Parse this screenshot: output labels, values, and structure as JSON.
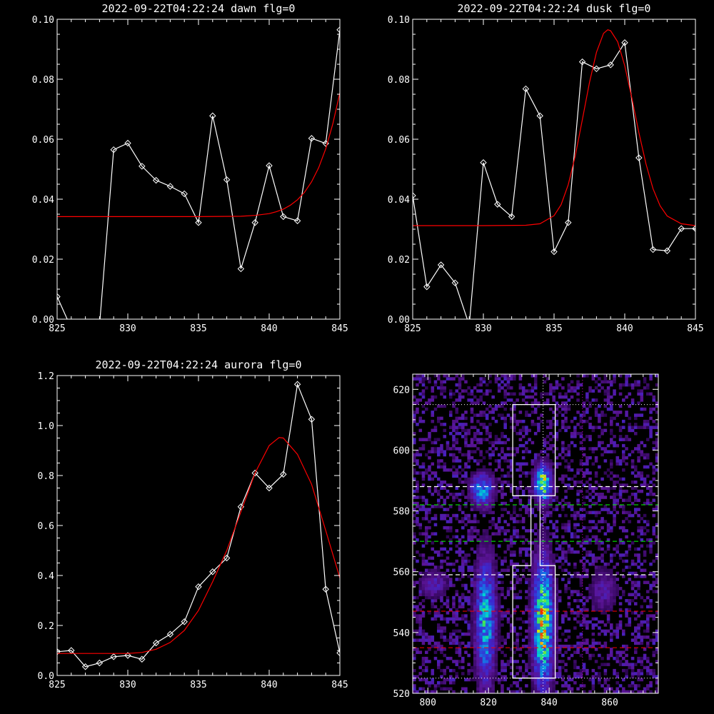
{
  "colors": {
    "background": "#000000",
    "axes": "#ffffff",
    "data_line": "#ffffff",
    "fit_line": "#ff0000",
    "guide_white": "#ffffff",
    "guide_green": "#00ff00",
    "guide_red": "#ff0000",
    "guide_magenta": "#c000c0"
  },
  "chart_data": [
    {
      "type": "line",
      "title": "2022-09-22T04:22:24 dawn flg=0",
      "xlim": [
        825,
        845
      ],
      "ylim": [
        0,
        0.1
      ],
      "xticks": [
        825,
        830,
        835,
        840,
        845
      ],
      "xtick_labels": [
        "825",
        "830",
        "835",
        "840",
        "845"
      ],
      "yticks": [
        0,
        0.02,
        0.04,
        0.06,
        0.08,
        0.1
      ],
      "ytick_labels": [
        "0.00",
        "0.02",
        "0.04",
        "0.06",
        "0.08",
        "0.10"
      ],
      "series": [
        {
          "style": "data",
          "markers": "diamond",
          "x": [
            825,
            826,
            827,
            828,
            829,
            830,
            831,
            832,
            833,
            834,
            835,
            836,
            837,
            838,
            839,
            840,
            841,
            842,
            843,
            844,
            845
          ],
          "y": [
            0.0075,
            -0.003,
            -0.002,
            -0.002,
            0.0565,
            0.0587,
            0.051,
            0.0463,
            0.0443,
            0.0418,
            0.0322,
            0.0678,
            0.0465,
            0.0168,
            0.0322,
            0.0512,
            0.0342,
            0.0328,
            0.0603,
            0.0586,
            0.0965
          ]
        },
        {
          "style": "fit",
          "x": [
            825,
            830,
            835,
            838,
            839,
            840,
            840.5,
            841,
            841.5,
            842,
            842.5,
            843,
            843.5,
            844,
            844.5,
            845
          ],
          "y": [
            0.0342,
            0.0342,
            0.0342,
            0.0343,
            0.0346,
            0.0352,
            0.0358,
            0.0367,
            0.038,
            0.0398,
            0.0423,
            0.0458,
            0.0505,
            0.0568,
            0.0651,
            0.0755
          ]
        }
      ]
    },
    {
      "type": "line",
      "title": "2022-09-22T04:22:24 dusk flg=0",
      "xlim": [
        825,
        845
      ],
      "ylim": [
        0,
        0.1
      ],
      "xticks": [
        825,
        830,
        835,
        840,
        845
      ],
      "xtick_labels": [
        "825",
        "830",
        "835",
        "840",
        "845"
      ],
      "yticks": [
        0,
        0.02,
        0.04,
        0.06,
        0.08,
        0.1
      ],
      "ytick_labels": [
        "0.00",
        "0.02",
        "0.04",
        "0.06",
        "0.08",
        "0.10"
      ],
      "series": [
        {
          "style": "data",
          "markers": "diamond",
          "x": [
            825,
            826,
            827,
            828,
            829,
            830,
            831,
            832,
            833,
            834,
            835,
            836,
            837,
            838,
            839,
            840,
            841,
            842,
            843,
            844,
            845
          ],
          "y": [
            0.0412,
            0.0108,
            0.0181,
            0.0121,
            -0.002,
            0.0522,
            0.0383,
            0.0342,
            0.0768,
            0.0678,
            0.0225,
            0.0322,
            0.0858,
            0.0835,
            0.0848,
            0.0922,
            0.0538,
            0.0232,
            0.0228,
            0.0302,
            0.0302
          ]
        },
        {
          "style": "fit",
          "x": [
            825,
            830,
            833,
            834,
            835,
            835.5,
            836,
            836.5,
            837,
            837.5,
            838,
            838.5,
            838.8,
            839,
            839.5,
            840,
            840.5,
            841,
            841.5,
            842,
            842.5,
            843,
            844,
            845
          ],
          "y": [
            0.0312,
            0.0312,
            0.0313,
            0.0318,
            0.0345,
            0.0382,
            0.0448,
            0.0545,
            0.0665,
            0.0788,
            0.089,
            0.0953,
            0.0965,
            0.0962,
            0.0925,
            0.0845,
            0.0738,
            0.0622,
            0.0518,
            0.0435,
            0.0378,
            0.0344,
            0.0318,
            0.0312
          ]
        }
      ]
    },
    {
      "type": "line",
      "title": "2022-09-22T04:22:24 aurora flg=0",
      "xlim": [
        825,
        845
      ],
      "ylim": [
        0,
        1.2
      ],
      "xticks": [
        825,
        830,
        835,
        840,
        845
      ],
      "xtick_labels": [
        "825",
        "830",
        "835",
        "840",
        "845"
      ],
      "yticks": [
        0,
        0.2,
        0.4,
        0.6,
        0.8,
        1.0,
        1.2
      ],
      "ytick_labels": [
        "0.0",
        "0.2",
        "0.4",
        "0.6",
        "0.8",
        "1.0",
        "1.2"
      ],
      "series": [
        {
          "style": "data",
          "markers": "diamond",
          "x": [
            825,
            826,
            827,
            828,
            829,
            830,
            831,
            832,
            833,
            834,
            835,
            836,
            837,
            838,
            839,
            840,
            841,
            842,
            843,
            844,
            845
          ],
          "y": [
            0.095,
            0.1,
            0.035,
            0.05,
            0.075,
            0.08,
            0.065,
            0.13,
            0.165,
            0.215,
            0.355,
            0.415,
            0.47,
            0.675,
            0.81,
            0.75,
            0.805,
            1.165,
            1.025,
            0.345,
            0.09
          ]
        },
        {
          "style": "fit",
          "x": [
            825,
            830,
            831,
            832,
            833,
            834,
            835,
            836,
            837,
            838,
            839,
            840,
            840.7,
            841,
            842,
            843,
            844,
            845
          ],
          "y": [
            0.088,
            0.088,
            0.092,
            0.105,
            0.132,
            0.18,
            0.26,
            0.375,
            0.5,
            0.655,
            0.81,
            0.92,
            0.952,
            0.95,
            0.885,
            0.765,
            0.58,
            0.39
          ]
        }
      ]
    },
    {
      "type": "heatmap",
      "xlim": [
        795,
        876
      ],
      "ylim": [
        520,
        625
      ],
      "xticks": [
        800,
        820,
        840,
        860
      ],
      "xtick_labels": [
        "800",
        "820",
        "840",
        "860"
      ],
      "yticks": [
        520,
        540,
        560,
        580,
        600,
        620
      ],
      "ytick_labels": [
        "520",
        "540",
        "560",
        "580",
        "600",
        "620"
      ],
      "guides": {
        "horizontal_dotted_white": [
          525,
          615
        ],
        "horizontal_dashed_white": [
          559,
          588
        ],
        "horizontal_dashed_green": [
          570,
          582
        ],
        "horizontal_dashed_red": [
          535,
          547
        ],
        "vertical_dotted_white": [
          838
        ],
        "vertical_dotted_magenta": [
          851
        ],
        "box_outline_white": [
          {
            "x": 828,
            "y": 585
          },
          {
            "x": 842,
            "y": 585
          },
          {
            "x": 842,
            "y": 615
          },
          {
            "x": 828,
            "y": 615
          },
          {
            "x": 828,
            "y": 585
          },
          {
            "x": 834,
            "y": 585
          },
          {
            "x": 834,
            "y": 562
          },
          {
            "x": 828,
            "y": 562
          },
          {
            "x": 828,
            "y": 525
          },
          {
            "x": 842,
            "y": 525
          },
          {
            "x": 842,
            "y": 562
          },
          {
            "x": 837,
            "y": 562
          },
          {
            "x": 837,
            "y": 585
          },
          {
            "x": 842,
            "y": 585
          }
        ]
      },
      "blobs": [
        {
          "x": 818,
          "y": 587,
          "sx": 2.5,
          "sy": 3.5,
          "a": 0.55
        },
        {
          "x": 819,
          "y": 544,
          "sx": 2.2,
          "sy": 14,
          "a": 0.6
        },
        {
          "x": 838,
          "y": 589,
          "sx": 1.8,
          "sy": 4,
          "a": 0.85
        },
        {
          "x": 838,
          "y": 543,
          "sx": 2.2,
          "sy": 14,
          "a": 0.85
        },
        {
          "x": 802,
          "y": 556,
          "sx": 3,
          "sy": 3,
          "a": 0.25
        },
        {
          "x": 858,
          "y": 554,
          "sx": 3,
          "sy": 5,
          "a": 0.2
        }
      ]
    }
  ]
}
